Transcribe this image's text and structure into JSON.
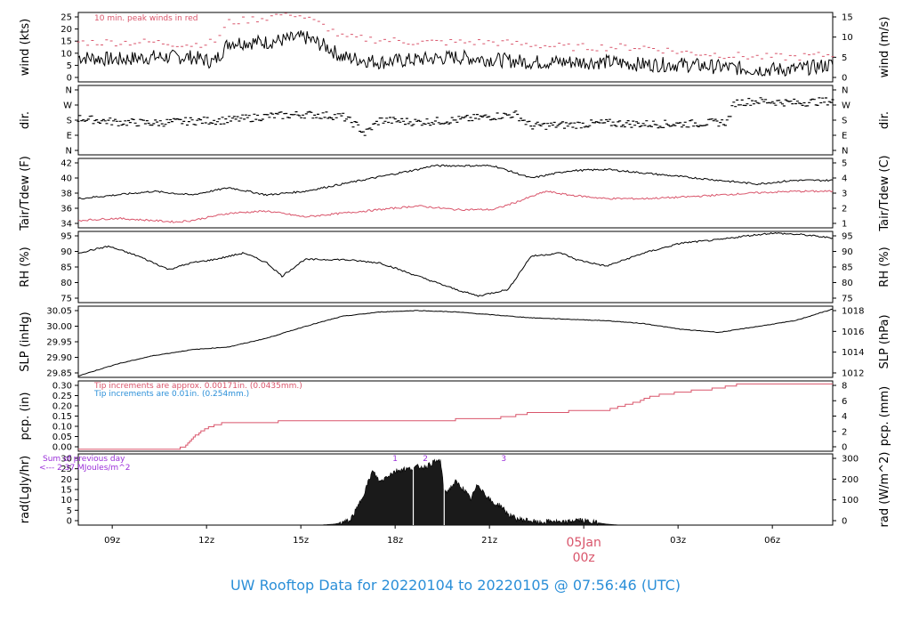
{
  "chart_data": [
    {
      "type": "line",
      "name": "wind",
      "ylabel": "wind (kts)",
      "ylabel_right": "wind (m/s)",
      "yticks": [
        "0",
        "5",
        "10",
        "15",
        "20",
        "25"
      ],
      "yticks_right": [
        "0",
        "5",
        "10",
        "15"
      ],
      "ylim": [
        0,
        28
      ],
      "annotation": "10 min. peak winds in red",
      "colors": {
        "speed": "#000000",
        "peak": "#d9556b"
      },
      "speed_keypoints": [
        [
          0,
          10
        ],
        [
          5,
          9
        ],
        [
          10,
          10
        ],
        [
          15,
          10
        ],
        [
          18,
          8
        ],
        [
          20,
          16
        ],
        [
          25,
          16
        ],
        [
          30,
          18
        ],
        [
          33,
          14
        ],
        [
          35,
          10
        ],
        [
          40,
          8
        ],
        [
          45,
          9
        ],
        [
          50,
          10
        ],
        [
          55,
          9
        ],
        [
          60,
          8
        ],
        [
          65,
          8
        ],
        [
          70,
          8
        ],
        [
          75,
          7
        ],
        [
          80,
          7
        ],
        [
          85,
          6
        ],
        [
          90,
          5
        ],
        [
          95,
          5
        ],
        [
          100,
          7
        ]
      ],
      "peak_keypoints": [
        [
          0,
          16
        ],
        [
          5,
          16
        ],
        [
          10,
          16
        ],
        [
          15,
          15
        ],
        [
          18,
          16
        ],
        [
          20,
          24
        ],
        [
          25,
          26
        ],
        [
          28,
          28
        ],
        [
          30,
          26
        ],
        [
          33,
          22
        ],
        [
          35,
          18
        ],
        [
          40,
          17
        ],
        [
          45,
          16
        ],
        [
          50,
          16
        ],
        [
          55,
          16
        ],
        [
          60,
          15
        ],
        [
          65,
          14
        ],
        [
          70,
          14
        ],
        [
          75,
          14
        ],
        [
          80,
          12
        ],
        [
          85,
          11
        ],
        [
          90,
          10
        ],
        [
          95,
          10
        ],
        [
          100,
          11
        ]
      ]
    },
    {
      "type": "scatter",
      "name": "dir",
      "ylabel": "dir.",
      "ylabel_right": "dir.",
      "yticks": [
        "N",
        "E",
        "S",
        "W",
        "N"
      ],
      "yticks_right": [
        "N",
        "E",
        "S",
        "W",
        "N"
      ],
      "ylim": [
        0,
        360
      ],
      "keypoints": [
        [
          0,
          190
        ],
        [
          5,
          170
        ],
        [
          10,
          165
        ],
        [
          15,
          175
        ],
        [
          20,
          180
        ],
        [
          25,
          200
        ],
        [
          30,
          210
        ],
        [
          35,
          200
        ],
        [
          37,
          150
        ],
        [
          38,
          110
        ],
        [
          40,
          180
        ],
        [
          45,
          170
        ],
        [
          50,
          180
        ],
        [
          55,
          200
        ],
        [
          58,
          210
        ],
        [
          60,
          150
        ],
        [
          65,
          155
        ],
        [
          70,
          165
        ],
        [
          75,
          160
        ],
        [
          80,
          160
        ],
        [
          86,
          170
        ],
        [
          87,
          270
        ],
        [
          90,
          280
        ],
        [
          95,
          270
        ],
        [
          100,
          280
        ]
      ]
    },
    {
      "type": "line",
      "name": "temp",
      "ylabel": "Tair/Tdew (F)",
      "ylabel_right": "Tair/Tdew (C)",
      "yticks": [
        "34",
        "36",
        "38",
        "40",
        "42"
      ],
      "yticks_right": [
        "1",
        "2",
        "3",
        "4",
        "5"
      ],
      "ylim": [
        33,
        42.5
      ],
      "colors": {
        "tair": "#000000",
        "tdew": "#d9556b"
      },
      "tair_keypoints": [
        [
          0,
          37
        ],
        [
          5,
          37.5
        ],
        [
          10,
          38
        ],
        [
          15,
          37.5
        ],
        [
          20,
          38.5
        ],
        [
          25,
          37.5
        ],
        [
          30,
          38
        ],
        [
          35,
          39
        ],
        [
          40,
          40
        ],
        [
          45,
          41
        ],
        [
          47,
          41.5
        ],
        [
          50,
          41.5
        ],
        [
          55,
          41.5
        ],
        [
          58,
          40.5
        ],
        [
          60,
          39.8
        ],
        [
          65,
          40.8
        ],
        [
          70,
          41
        ],
        [
          75,
          40.5
        ],
        [
          80,
          40
        ],
        [
          85,
          39.5
        ],
        [
          90,
          39
        ],
        [
          95,
          39.5
        ],
        [
          100,
          39.5
        ]
      ],
      "tdew_keypoints": [
        [
          0,
          34
        ],
        [
          5,
          34.3
        ],
        [
          10,
          34
        ],
        [
          13,
          33.8
        ],
        [
          15,
          34
        ],
        [
          20,
          35
        ],
        [
          25,
          35.3
        ],
        [
          30,
          34.5
        ],
        [
          35,
          35
        ],
        [
          40,
          35.5
        ],
        [
          45,
          36
        ],
        [
          50,
          35.5
        ],
        [
          55,
          35.5
        ],
        [
          58,
          36.5
        ],
        [
          62,
          38
        ],
        [
          65,
          37.5
        ],
        [
          70,
          37
        ],
        [
          75,
          37
        ],
        [
          80,
          37.2
        ],
        [
          85,
          37.5
        ],
        [
          90,
          37.8
        ],
        [
          95,
          38
        ],
        [
          100,
          38
        ]
      ]
    },
    {
      "type": "line",
      "name": "rh",
      "ylabel": "RH (%)",
      "ylabel_right": "RH (%)",
      "yticks": [
        "75",
        "80",
        "85",
        "90",
        "95"
      ],
      "yticks_right": [
        "75",
        "80",
        "85",
        "90",
        "95"
      ],
      "ylim": [
        74,
        95.5
      ],
      "keypoints": [
        [
          0,
          89
        ],
        [
          4,
          91
        ],
        [
          8,
          88
        ],
        [
          12,
          84
        ],
        [
          15,
          86
        ],
        [
          18,
          87
        ],
        [
          22,
          89
        ],
        [
          25,
          86
        ],
        [
          27,
          82
        ],
        [
          30,
          87
        ],
        [
          35,
          87
        ],
        [
          40,
          86
        ],
        [
          45,
          82
        ],
        [
          50,
          78
        ],
        [
          53,
          76
        ],
        [
          57,
          78
        ],
        [
          60,
          88
        ],
        [
          64,
          89
        ],
        [
          66,
          87
        ],
        [
          70,
          85
        ],
        [
          75,
          89
        ],
        [
          80,
          92
        ],
        [
          85,
          93
        ],
        [
          88,
          94
        ],
        [
          92,
          95
        ],
        [
          96,
          94.5
        ],
        [
          100,
          93.5
        ]
      ]
    },
    {
      "type": "line",
      "name": "slp",
      "ylabel": "SLP (inHg)",
      "ylabel_right": "SLP (hPa)",
      "yticks": [
        "29.85",
        "29.90",
        "29.95",
        "30.00",
        "30.05"
      ],
      "yticks_right": [
        "1012",
        "1014",
        "1016",
        "1018"
      ],
      "ylim": [
        29.845,
        30.09
      ],
      "keypoints": [
        [
          0,
          29.85
        ],
        [
          5,
          29.89
        ],
        [
          10,
          29.92
        ],
        [
          15,
          29.94
        ],
        [
          20,
          29.95
        ],
        [
          25,
          29.98
        ],
        [
          30,
          30.02
        ],
        [
          35,
          30.055
        ],
        [
          40,
          30.07
        ],
        [
          45,
          30.075
        ],
        [
          50,
          30.07
        ],
        [
          55,
          30.06
        ],
        [
          60,
          30.05
        ],
        [
          65,
          30.045
        ],
        [
          70,
          30.04
        ],
        [
          75,
          30.03
        ],
        [
          80,
          30.01
        ],
        [
          85,
          30.0
        ],
        [
          90,
          30.02
        ],
        [
          95,
          30.04
        ],
        [
          100,
          30.08
        ]
      ]
    },
    {
      "type": "line",
      "name": "pcp",
      "ylabel": "pcp. (in)",
      "ylabel_right": "pcp. (mm)",
      "yticks": [
        "0.00",
        "0.05",
        "0.10",
        "0.15",
        "0.20",
        "0.25",
        "0.30"
      ],
      "yticks_right": [
        "0",
        "2",
        "4",
        "6",
        "8"
      ],
      "ylim": [
        -0.01,
        0.335
      ],
      "annotation_1": "Tip increments are approx. 0.00171in. (0.0435mm.)",
      "annotation_2": "Tip increments are 0.01in. (0.254mm.)",
      "colors": {
        "line": "#d9556b",
        "note_1": "#d9556b",
        "note_2": "#2b8fd8"
      },
      "keypoints": [
        [
          0,
          0
        ],
        [
          13,
          0
        ],
        [
          14,
          0.01
        ],
        [
          15,
          0.05
        ],
        [
          16,
          0.08
        ],
        [
          17,
          0.1
        ],
        [
          18,
          0.12
        ],
        [
          20,
          0.13
        ],
        [
          25,
          0.13
        ],
        [
          28,
          0.14
        ],
        [
          45,
          0.14
        ],
        [
          55,
          0.15
        ],
        [
          59,
          0.17
        ],
        [
          60,
          0.18
        ],
        [
          70,
          0.19
        ],
        [
          74,
          0.23
        ],
        [
          76,
          0.26
        ],
        [
          80,
          0.28
        ],
        [
          85,
          0.3
        ],
        [
          88,
          0.32
        ],
        [
          100,
          0.32
        ]
      ]
    },
    {
      "type": "area",
      "name": "rad",
      "ylabel": "rad(Lgly/hr)",
      "ylabel_right": "rad (W/m^2)",
      "yticks": [
        "0",
        "5",
        "10",
        "15",
        "20",
        "25",
        "30"
      ],
      "yticks_right": [
        "0",
        "100",
        "200",
        "300"
      ],
      "ylim": [
        0,
        33
      ],
      "annotation_1": "Sum of previous day",
      "annotation_2": "<--- 2.37 MJoules/m^2",
      "marks": [
        "1",
        "2",
        "3"
      ],
      "colors": {
        "fill": "#1a1a1a",
        "note": "#9b30d9"
      },
      "keypoints": [
        [
          32,
          0
        ],
        [
          34,
          0.5
        ],
        [
          36,
          2
        ],
        [
          37,
          8
        ],
        [
          38,
          16
        ],
        [
          39,
          25
        ],
        [
          40,
          20
        ],
        [
          41,
          23
        ],
        [
          42,
          25
        ],
        [
          43,
          26
        ],
        [
          44,
          26
        ],
        [
          45,
          27
        ],
        [
          46,
          27
        ],
        [
          47,
          29
        ],
        [
          48,
          30
        ],
        [
          48.5,
          15
        ],
        [
          49,
          16
        ],
        [
          50,
          20
        ],
        [
          51,
          17
        ],
        [
          52,
          12
        ],
        [
          53,
          19
        ],
        [
          54,
          14
        ],
        [
          55,
          10
        ],
        [
          56,
          9
        ],
        [
          57,
          5
        ],
        [
          58,
          3
        ],
        [
          60,
          2
        ],
        [
          61,
          1
        ],
        [
          62,
          1.5
        ],
        [
          63,
          2
        ],
        [
          64,
          1
        ],
        [
          65,
          1.5
        ],
        [
          66,
          2.5
        ],
        [
          67,
          2
        ],
        [
          68,
          1.5
        ],
        [
          69,
          1
        ],
        [
          70,
          0.5
        ],
        [
          71,
          0.2
        ],
        [
          72,
          0
        ]
      ]
    }
  ],
  "xaxis": {
    "ticks": [
      "09z",
      "12z",
      "15z",
      "18z",
      "21z",
      "00z",
      "03z",
      "06z"
    ],
    "tick_pct": [
      4.5,
      17,
      29.5,
      42,
      54.5,
      67,
      79.5,
      92
    ],
    "date_label": "05Jan",
    "date_label_sub": "00z",
    "date_color": "#d9556b"
  },
  "footer": {
    "text": "UW Rooftop Data for 20220104  to  20220105 @ 07:56:46  (UTC)",
    "color": "#2b8fd8"
  }
}
